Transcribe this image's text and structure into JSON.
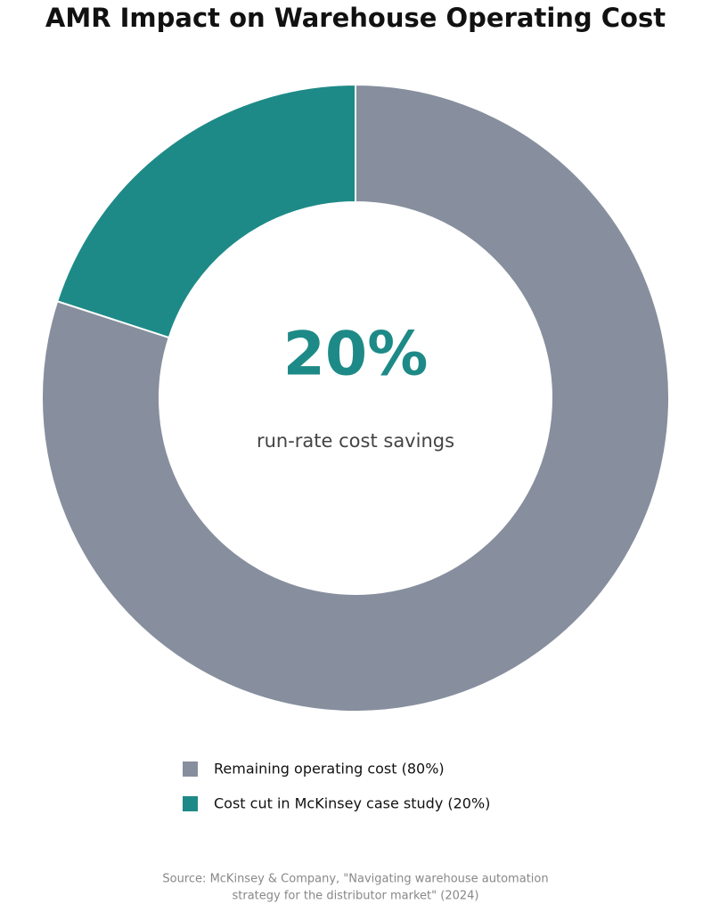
{
  "chart_data": {
    "type": "pie",
    "title": "AMR Impact on Warehouse Operating Cost",
    "center_value_label": "20%",
    "center_caption": "run-rate cost savings",
    "categories": [
      "Remaining operating cost (80%)",
      "Cost cut in McKinsey case study (20%)"
    ],
    "values": [
      80,
      20
    ],
    "colors": [
      "#878f9e",
      "#1e8a87"
    ],
    "source": [
      "Source: McKinsey & Company, \"Navigating warehouse automation",
      "strategy for the distributor market\" (2024)"
    ]
  }
}
